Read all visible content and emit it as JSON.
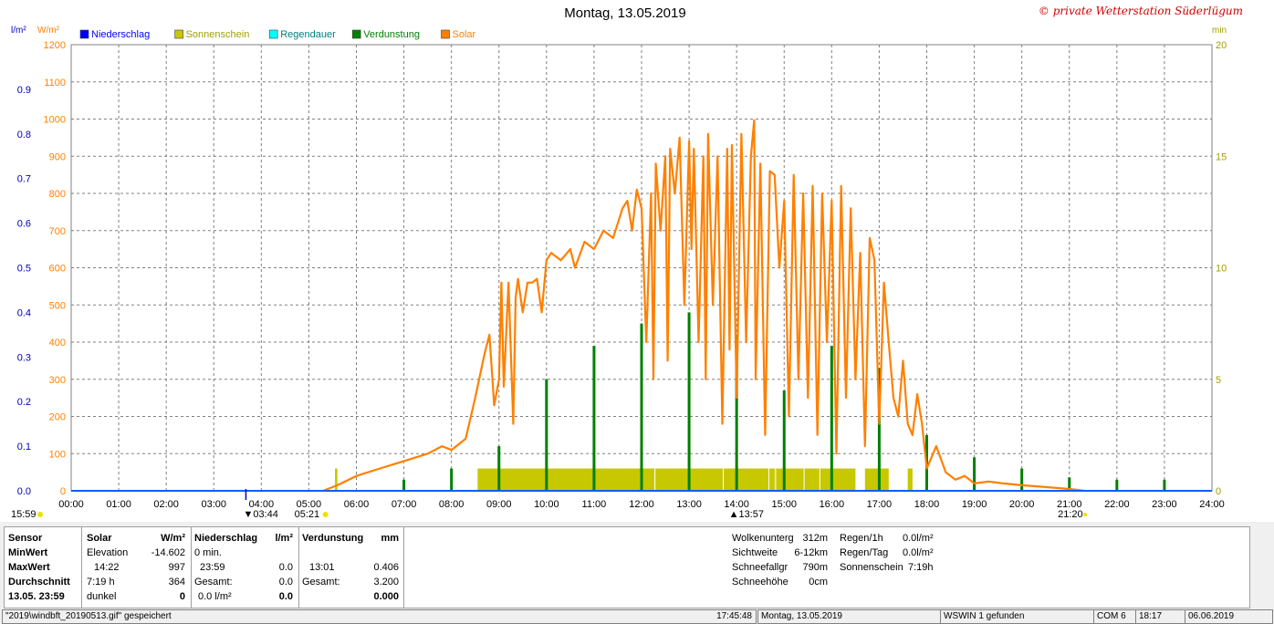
{
  "chart_data": {
    "type": "line",
    "title": "Montag, 13.05.2019",
    "credit": "© private Wetterstation Süderlügum",
    "left_axis_units": [
      "l/m²",
      "W/m²"
    ],
    "right_axis_unit": "min",
    "solar_axis": {
      "min": 0,
      "max": 1200,
      "ticks": [
        "0",
        "100",
        "200",
        "300",
        "400",
        "500",
        "600",
        "700",
        "800",
        "900",
        "1000",
        "1100",
        "1200"
      ]
    },
    "precip_axis": {
      "min": 0,
      "max": 1.0,
      "ticks": [
        "0.0",
        "0.1",
        "0.2",
        "0.3",
        "0.4",
        "0.5",
        "0.6",
        "0.7",
        "0.8",
        "0.9"
      ]
    },
    "minutes_axis": {
      "min": 0,
      "max": 20,
      "ticks": [
        "0",
        "5",
        "10",
        "15",
        "20"
      ]
    },
    "x_range_hours": [
      0,
      24
    ],
    "x_ticks": [
      "00:00",
      "01:00",
      "02:00",
      "03:00",
      "04:00",
      "05:00",
      "06:00",
      "07:00",
      "08:00",
      "09:00",
      "10:00",
      "11:00",
      "12:00",
      "13:00",
      "14:00",
      "15:00",
      "16:00",
      "17:00",
      "18:00",
      "19:00",
      "20:00",
      "21:00",
      "22:00",
      "23:00",
      "24:00"
    ],
    "grid": true,
    "legend_position": "top-left",
    "legend": [
      {
        "label": "Niederschlag",
        "color": "#0000ff"
      },
      {
        "label": "Sonnenschein",
        "color": "#c8c800"
      },
      {
        "label": "Regendauer",
        "color": "#00ffff"
      },
      {
        "label": "Verdunstung",
        "color": "#008000"
      },
      {
        "label": "Solar",
        "color": "#ff8000"
      }
    ],
    "annotations": {
      "moon_set": "03:44",
      "moon_left": "15:59",
      "sunrise": "05:21",
      "solar_noon": "13:57",
      "sunset": "21:20"
    },
    "solar": {
      "name": "Solar",
      "x": [
        5.3,
        5.6,
        6.0,
        6.5,
        7.0,
        7.5,
        7.8,
        8.0,
        8.3,
        8.5,
        8.7,
        8.8,
        8.9,
        9.0,
        9.05,
        9.1,
        9.2,
        9.3,
        9.35,
        9.4,
        9.5,
        9.6,
        9.7,
        9.8,
        9.9,
        10.0,
        10.1,
        10.3,
        10.5,
        10.6,
        10.8,
        11.0,
        11.2,
        11.4,
        11.5,
        11.6,
        11.7,
        11.8,
        11.9,
        12.0,
        12.1,
        12.2,
        12.25,
        12.3,
        12.4,
        12.5,
        12.55,
        12.6,
        12.7,
        12.8,
        12.9,
        13.0,
        13.05,
        13.1,
        13.2,
        13.3,
        13.35,
        13.4,
        13.5,
        13.6,
        13.7,
        13.8,
        13.85,
        13.9,
        14.0,
        14.1,
        14.2,
        14.3,
        14.37,
        14.4,
        14.5,
        14.6,
        14.7,
        14.8,
        14.9,
        15.0,
        15.1,
        15.2,
        15.3,
        15.4,
        15.5,
        15.6,
        15.7,
        15.8,
        15.9,
        16.0,
        16.1,
        16.2,
        16.3,
        16.4,
        16.5,
        16.6,
        16.7,
        16.8,
        16.9,
        17.0,
        17.1,
        17.2,
        17.3,
        17.4,
        17.5,
        17.6,
        17.7,
        17.8,
        17.9,
        18.0,
        18.2,
        18.4,
        18.6,
        18.8,
        19.0,
        19.3,
        19.6,
        20.0,
        20.5,
        21.0,
        21.2,
        21.33
      ],
      "values": [
        0,
        15,
        40,
        60,
        80,
        100,
        120,
        110,
        140,
        250,
        370,
        420,
        230,
        300,
        560,
        280,
        560,
        180,
        520,
        570,
        480,
        560,
        560,
        570,
        480,
        620,
        640,
        620,
        650,
        600,
        670,
        650,
        700,
        680,
        720,
        760,
        780,
        700,
        810,
        760,
        400,
        800,
        300,
        880,
        700,
        900,
        350,
        920,
        800,
        950,
        500,
        940,
        650,
        920,
        400,
        900,
        300,
        960,
        500,
        900,
        180,
        920,
        380,
        930,
        250,
        960,
        400,
        900,
        997,
        300,
        880,
        150,
        860,
        850,
        600,
        780,
        200,
        850,
        300,
        800,
        250,
        820,
        150,
        800,
        400,
        780,
        100,
        820,
        250,
        760,
        300,
        640,
        120,
        680,
        620,
        180,
        560,
        400,
        250,
        200,
        350,
        180,
        150,
        260,
        180,
        60,
        120,
        50,
        30,
        40,
        20,
        25,
        20,
        15,
        10,
        5,
        2,
        0
      ]
    },
    "sunshine_minutes": {
      "name": "Sonnenschein",
      "blocks": [
        [
          5.55,
          5.6,
          1.0
        ],
        [
          8.55,
          12.3,
          1.0
        ],
        [
          12.3,
          13.7,
          1.0
        ],
        [
          13.7,
          14.8,
          1.0
        ],
        [
          14.8,
          16.5,
          1.0
        ],
        [
          16.7,
          17.2,
          1.0
        ],
        [
          17.6,
          17.7,
          1.0
        ]
      ]
    },
    "evaporation_minutes": {
      "name": "Verdunstung",
      "x": [
        7.0,
        8.0,
        9.0,
        10.0,
        11.0,
        12.0,
        13.0,
        14.0,
        15.0,
        16.0,
        17.0,
        18.0,
        19.0,
        20.0,
        21.0,
        22.0,
        23.0
      ],
      "values": [
        0.5,
        1.0,
        2.0,
        5.0,
        6.5,
        7.5,
        8.0,
        7.0,
        4.5,
        6.5,
        5.5,
        2.5,
        1.5,
        1.0,
        0.6,
        0.5,
        0.5
      ]
    }
  },
  "table": {
    "sensor": {
      "title": "Sensor",
      "rows": [
        "MinWert",
        "MaxWert",
        "Durchschnitt",
        "13.05.  23:59"
      ]
    },
    "solar": {
      "title": "Solar",
      "unit": "W/m²",
      "rows": [
        [
          "Elevation",
          "-14.602"
        ],
        [
          "14:22",
          "997"
        ],
        [
          "7:19 h",
          "364"
        ],
        [
          "dunkel",
          "0"
        ]
      ]
    },
    "niederschlag": {
      "title": "Niederschlag",
      "unit": "l/m²",
      "rows": [
        [
          "0 min.",
          ""
        ],
        [
          "23:59",
          "0.0"
        ],
        [
          "Gesamt:",
          "0.0"
        ],
        [
          "0.0 l/m²",
          "0.0"
        ]
      ]
    },
    "verdunstung": {
      "title": "Verdunstung",
      "unit": "mm",
      "rows": [
        [
          "",
          ""
        ],
        [
          "13:01",
          "0.406"
        ],
        [
          "Gesamt:",
          "3.200"
        ],
        [
          "",
          "0.000"
        ]
      ]
    },
    "extra1": [
      [
        "Wolkenunterg",
        "312m"
      ],
      [
        "Sichtweite",
        "6-12km"
      ],
      [
        "Schneefallgr",
        "790m"
      ],
      [
        "Schneehöhe",
        "0cm"
      ]
    ],
    "extra2": [
      [
        "Regen/1h",
        "0.0l/m²"
      ],
      [
        "Regen/Tag",
        "0.0l/m²"
      ],
      [
        "Sonnenschein",
        "7:19h"
      ]
    ]
  },
  "status_bar": [
    "\"2019\\windbft_20190513.gif\"  gespeichert",
    "17:45:48",
    "Montag, 13.05.2019",
    "WSWIN 1 gefunden",
    "COM 6",
    "18:17",
    "06.06.2019"
  ]
}
